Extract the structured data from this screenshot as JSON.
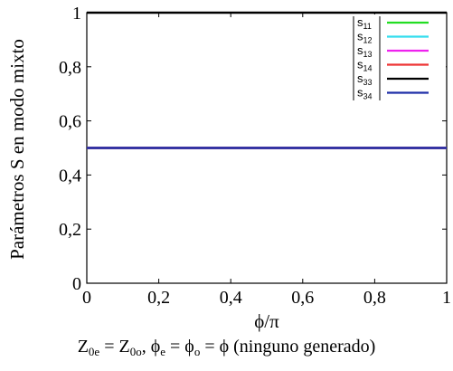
{
  "chart_data": {
    "type": "line",
    "xlabel": "ϕ/π",
    "ylabel": "Parámetros S en modo mixto",
    "xlim": [
      0,
      1
    ],
    "ylim": [
      0,
      1
    ],
    "x_ticks": [
      "0",
      "0,2",
      "0,4",
      "0,6",
      "0,8",
      "1"
    ],
    "y_ticks": [
      "0",
      "0,2",
      "0,4",
      "0,6",
      "0,8",
      "1"
    ],
    "grid": false,
    "legend_position": "top-right",
    "series": [
      {
        "name": "|s11|",
        "label_main": "s",
        "label_sub": "11",
        "color": "#22dd22",
        "x": [
          0,
          1
        ],
        "y": [
          0.5,
          0.5
        ]
      },
      {
        "name": "|s12|",
        "label_main": "s",
        "label_sub": "12",
        "color": "#33ddee",
        "x": [
          0,
          1
        ],
        "y": [
          0.5,
          0.5
        ]
      },
      {
        "name": "|s13|",
        "label_main": "s",
        "label_sub": "13",
        "color": "#ee22ee",
        "x": [
          0,
          1
        ],
        "y": [
          0.5,
          0.5
        ]
      },
      {
        "name": "|s14|",
        "label_main": "s",
        "label_sub": "14",
        "color": "#ee3333",
        "x": [
          0,
          1
        ],
        "y": [
          0.5,
          0.5
        ]
      },
      {
        "name": "|s33|",
        "label_main": "s",
        "label_sub": "33",
        "color": "#000000",
        "x": [
          0,
          1
        ],
        "y": [
          1.0,
          1.0
        ]
      },
      {
        "name": "|s34|",
        "label_main": "s",
        "label_sub": "34",
        "color": "#1f2fa8",
        "x": [
          0,
          1
        ],
        "y": [
          0.5,
          0.5
        ]
      }
    ]
  },
  "caption": {
    "z": "Z",
    "z_sub_e": "0e",
    "eq1": " = ",
    "z_sub_o": "0o",
    "mid": ", ϕ",
    "phi_sub_e": "e",
    "eq2": " = ϕ",
    "phi_sub_o": "o",
    "tail": " = ϕ (ninguno generado)"
  }
}
